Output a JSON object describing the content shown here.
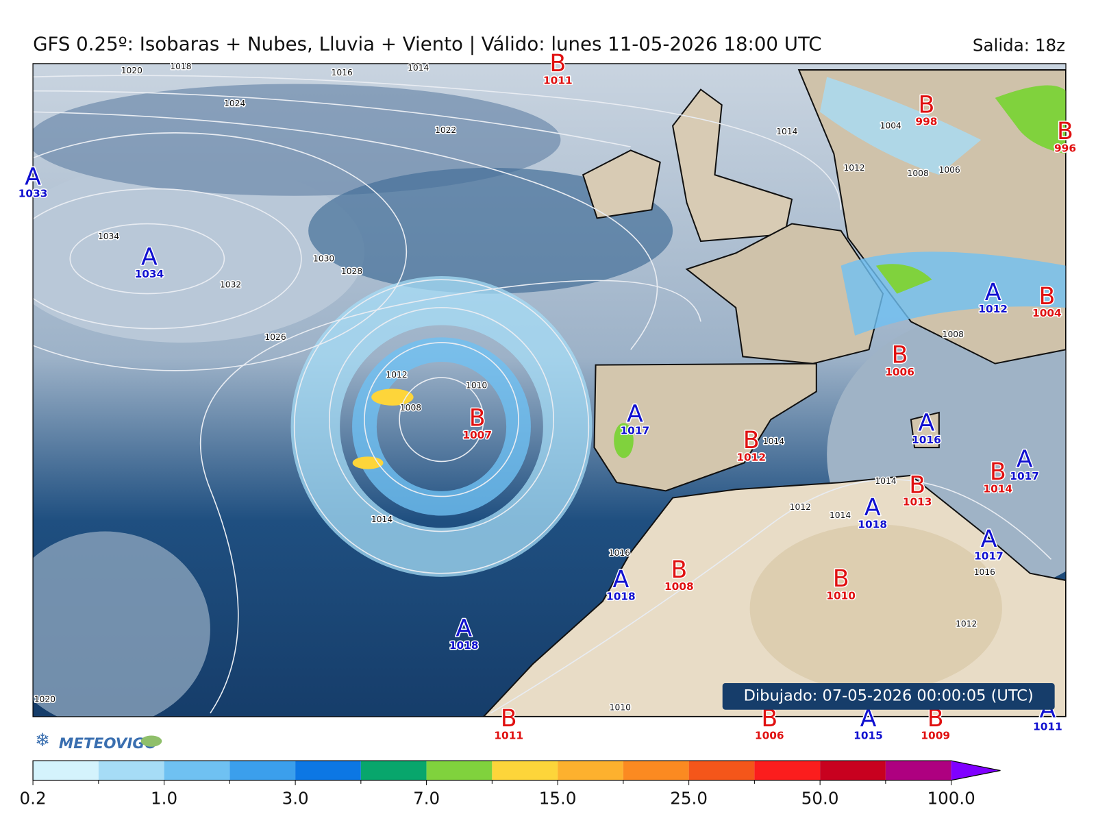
{
  "header": {
    "title": "GFS 0.25º: Isobaras + Nubes, Lluvia + Viento | Válido: lunes 11-05-2026 18:00 UTC",
    "run": "Salida: 18z"
  },
  "centers": [
    {
      "type": "B",
      "value": 1011
    },
    {
      "type": "A",
      "value": 1033
    },
    {
      "type": "A",
      "value": 1034
    },
    {
      "type": "B",
      "value": 998
    },
    {
      "type": "B",
      "value": 996
    },
    {
      "type": "A",
      "value": 1012
    },
    {
      "type": "B",
      "value": 1004
    },
    {
      "type": "B",
      "value": 1006
    },
    {
      "type": "B",
      "value": 1007
    },
    {
      "type": "A",
      "value": 1017
    },
    {
      "type": "B",
      "value": 1012
    },
    {
      "type": "A",
      "value": 1016
    },
    {
      "type": "A",
      "value": 1017
    },
    {
      "type": "B",
      "value": 1014
    },
    {
      "type": "B",
      "value": 1013
    },
    {
      "type": "A",
      "value": 1018
    },
    {
      "type": "A",
      "value": 1017
    },
    {
      "type": "A",
      "value": 1018
    },
    {
      "type": "B",
      "value": 1008
    },
    {
      "type": "B",
      "value": 1010
    },
    {
      "type": "A",
      "value": 1018
    },
    {
      "type": "B",
      "value": 1011
    },
    {
      "type": "B",
      "value": 1006
    },
    {
      "type": "A",
      "value": 1015
    },
    {
      "type": "B",
      "value": 1009
    },
    {
      "type": "A",
      "value": 1011
    }
  ],
  "isobar_labels": [
    1020,
    1018,
    1016,
    1014,
    1024,
    1022,
    1034,
    1030,
    1028,
    1032,
    1026,
    1012,
    1010,
    1008,
    1014,
    1014,
    1004,
    1012,
    1008,
    1006,
    1008,
    1016,
    1014,
    1012,
    1014,
    1016,
    1012,
    1010,
    1020,
    1014
  ],
  "drawn": "Dibujado: 07-05-2026 00:00:05 (UTC)",
  "logo": "METEOVIGO",
  "colorbar": {
    "colors": [
      "#d4f3fc",
      "#a6dcf6",
      "#6fc1f2",
      "#3b9fec",
      "#0c77e4",
      "#08a66c",
      "#80d23d",
      "#fdd53a",
      "#fdb12e",
      "#fb8a21",
      "#f4561a",
      "#fb1d1d",
      "#c8011f",
      "#ae0080",
      "#8000ff"
    ],
    "ticks": [
      0.2,
      {
        "value": 1,
        "label": "1.0"
      },
      {
        "value": 3,
        "label": "3.0"
      },
      {
        "value": 7,
        "label": "7.0"
      },
      {
        "value": 15,
        "label": "15.0"
      },
      {
        "value": 25,
        "label": "25.0"
      },
      {
        "value": 50,
        "label": "50.0"
      },
      {
        "value": 100,
        "label": "100.0"
      }
    ]
  }
}
